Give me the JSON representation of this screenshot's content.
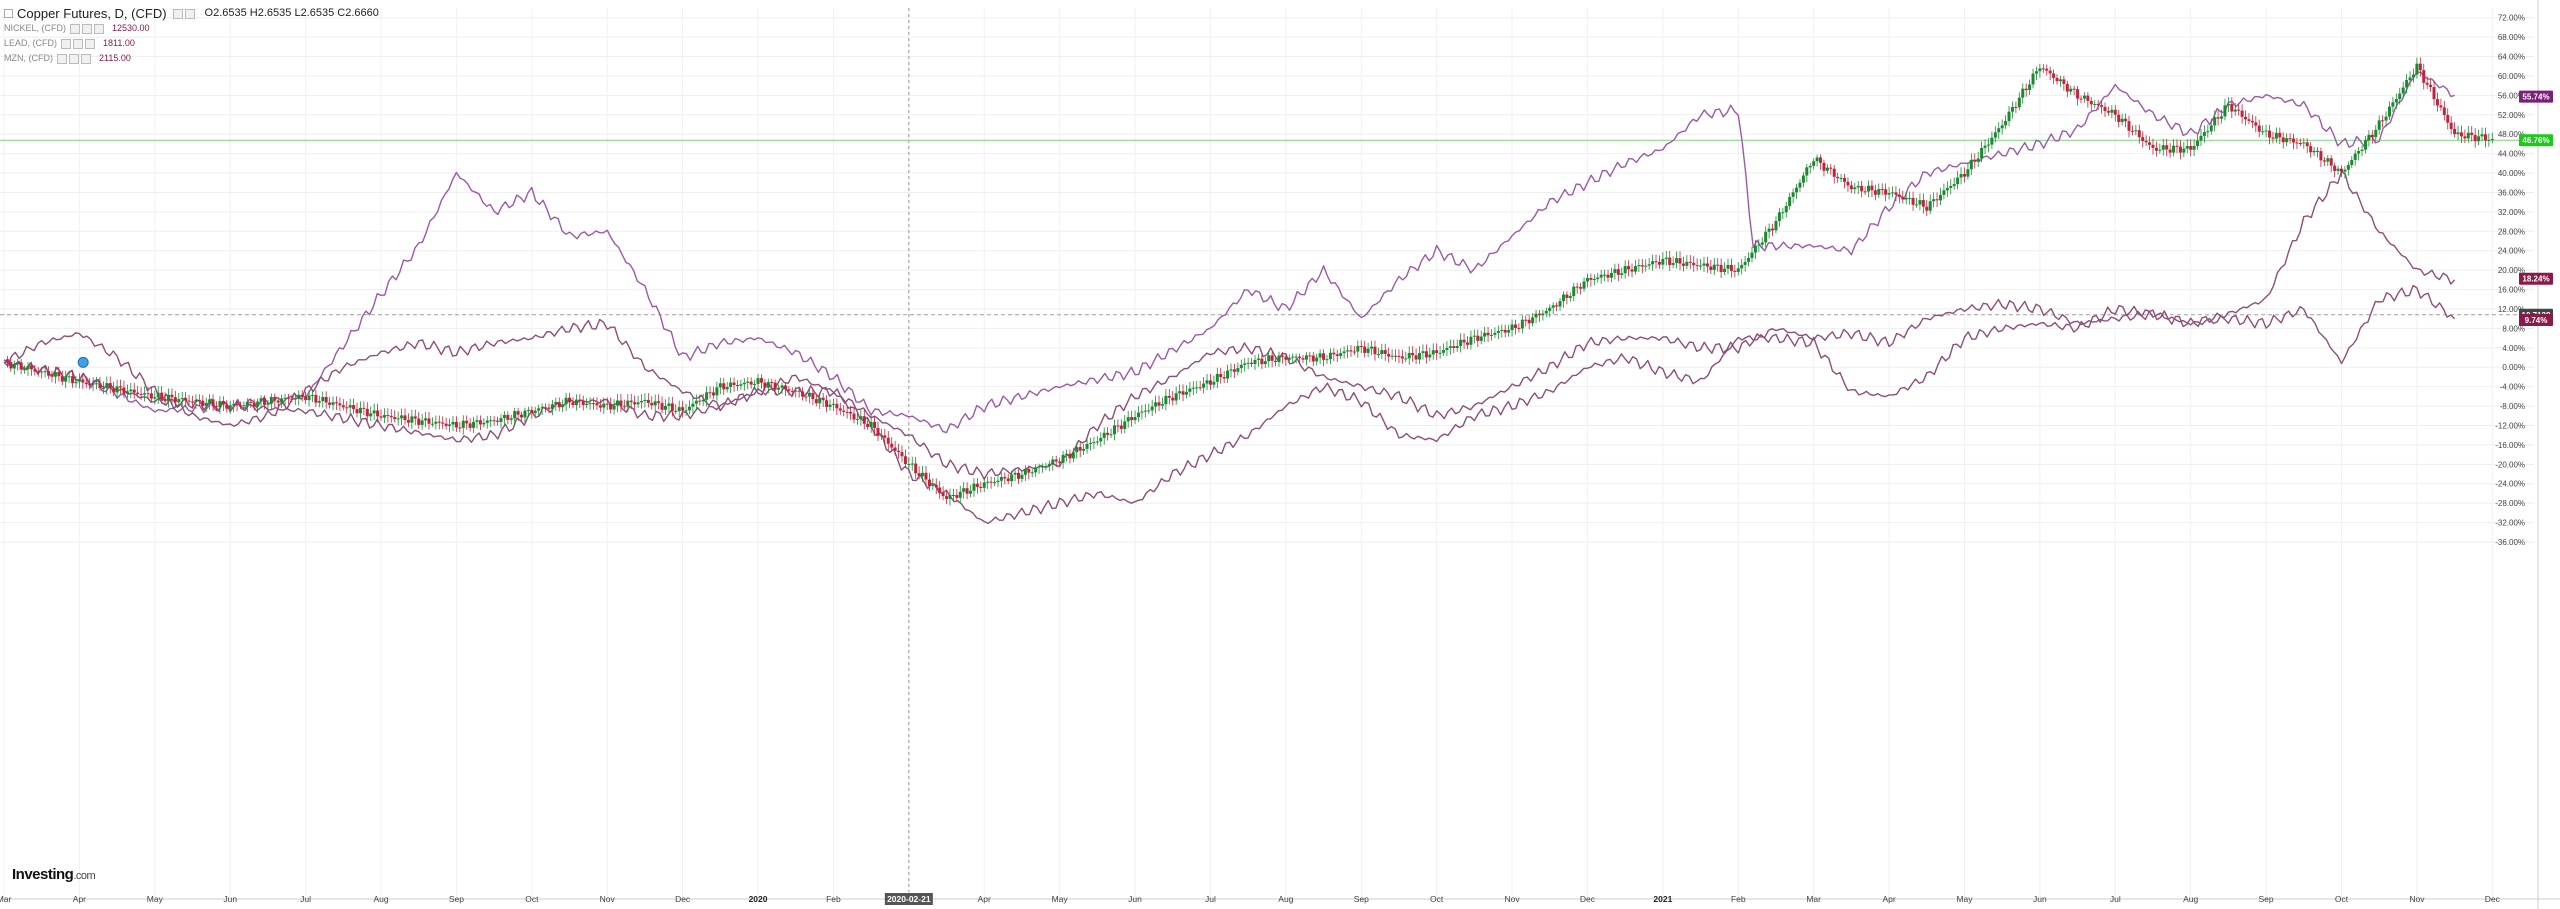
{
  "legend": {
    "title": "Copper Futures, D, (CFD)",
    "ohlc": "O2.6535  H2.6535  L2.6535  C2.6660",
    "comparisons": [
      {
        "name": "NICKEL, (CFD)",
        "value": "12530.00"
      },
      {
        "name": "LEAD, (CFD)",
        "value": "1811.00"
      },
      {
        "name": "MZN, (CFD)",
        "value": "2115.00"
      }
    ]
  },
  "logo": {
    "main": "Investing",
    "suffix": ".com"
  },
  "colors": {
    "purple": "#9b5aa8",
    "mauve": "#8e4e7a",
    "up": "#1a8a2e",
    "down": "#c0243c",
    "green_line": "#78d878",
    "badge_purple": "#7b1f7a",
    "badge_green": "#1ec81e",
    "badge_maroon": "#8b1a4a",
    "badge_dark": "#444444"
  },
  "chart_data": {
    "type": "line",
    "title": "Copper Futures, D, (CFD)",
    "y_unit": "%",
    "ylim": [
      -36,
      74
    ],
    "y_ticks": [
      -36,
      -32,
      -28,
      -24,
      -20,
      -16,
      -12,
      -8,
      -4,
      0,
      4,
      8,
      12,
      16,
      20,
      24,
      28,
      32,
      36,
      40,
      44,
      48,
      52,
      56,
      60,
      64,
      68,
      72
    ],
    "x_labels": [
      "Mar",
      "Apr",
      "May",
      "Jun",
      "Jul",
      "Aug",
      "Sep",
      "Oct",
      "Nov",
      "Dec",
      "2020",
      "Feb",
      "2020-02-21",
      "Apr",
      "May",
      "Jun",
      "Jul",
      "Aug",
      "Sep",
      "Oct",
      "Nov",
      "Dec",
      "2021",
      "Feb",
      "Mar",
      "Apr",
      "May",
      "Jun",
      "Jul",
      "Aug",
      "Sep",
      "Oct",
      "Nov",
      "Dec"
    ],
    "highlight_x_label": "2020-02-21",
    "grid": true,
    "badges": [
      {
        "label": "55.74%",
        "value": 55.74,
        "color": "badge_purple"
      },
      {
        "label": "46.76%",
        "value": 46.76,
        "color": "badge_green"
      },
      {
        "label": "18.24%",
        "value": 18.24,
        "color": "badge_maroon"
      },
      {
        "label": "10.7138",
        "value": 10.8,
        "color": "badge_dark"
      },
      {
        "label": "9.74%",
        "value": 9.74,
        "color": "badge_maroon"
      }
    ],
    "horizontal_lines": [
      {
        "value": 46.76,
        "style": "solid",
        "color": "green_line"
      },
      {
        "value": 10.8,
        "style": "dashed",
        "color": "badge_dark"
      }
    ],
    "series": [
      {
        "name": "NICKEL, (CFD)",
        "color": "purple",
        "style": "line",
        "points": [
          [
            0,
            1
          ],
          [
            1,
            -2
          ],
          [
            2,
            -9
          ],
          [
            3,
            -8
          ],
          [
            4,
            -6
          ],
          [
            5,
            15
          ],
          [
            5.5,
            25
          ],
          [
            6,
            40
          ],
          [
            6.5,
            32
          ],
          [
            7,
            36
          ],
          [
            7.5,
            27
          ],
          [
            8,
            28
          ],
          [
            8.5,
            16
          ],
          [
            9,
            2
          ],
          [
            9.5,
            5
          ],
          [
            10,
            6
          ],
          [
            10.5,
            3
          ],
          [
            11,
            -2
          ],
          [
            11.5,
            -9
          ],
          [
            12,
            -10
          ],
          [
            12.5,
            -13
          ],
          [
            13,
            -8
          ],
          [
            14,
            -4
          ],
          [
            15,
            -1
          ],
          [
            16,
            8
          ],
          [
            16.5,
            16
          ],
          [
            17,
            12
          ],
          [
            17.5,
            20
          ],
          [
            18,
            10
          ],
          [
            18.5,
            18
          ],
          [
            19,
            24
          ],
          [
            19.5,
            20
          ],
          [
            20,
            27
          ],
          [
            20.5,
            34
          ],
          [
            21,
            38
          ],
          [
            21.5,
            42
          ],
          [
            22,
            45
          ],
          [
            22.5,
            52
          ],
          [
            23,
            53
          ],
          [
            23.2,
            25
          ],
          [
            24,
            25
          ],
          [
            24.5,
            24
          ],
          [
            25,
            33
          ],
          [
            25.5,
            40
          ],
          [
            26,
            42
          ],
          [
            26.5,
            44
          ],
          [
            27,
            46
          ],
          [
            27.5,
            49
          ],
          [
            28,
            58
          ],
          [
            28.5,
            52
          ],
          [
            29,
            48
          ],
          [
            29.5,
            54
          ],
          [
            30,
            56
          ],
          [
            30.5,
            54
          ],
          [
            31,
            46
          ],
          [
            31.5,
            47
          ],
          [
            32,
            61
          ],
          [
            32.5,
            56
          ]
        ]
      },
      {
        "name": "LEAD, (CFD)",
        "color": "mauve",
        "style": "line",
        "points": [
          [
            0,
            1
          ],
          [
            0.5,
            5
          ],
          [
            1,
            7
          ],
          [
            1.5,
            2
          ],
          [
            2,
            -5
          ],
          [
            2.5,
            -10
          ],
          [
            3,
            -12
          ],
          [
            3.5,
            -10
          ],
          [
            4,
            -5
          ],
          [
            4.5,
            0
          ],
          [
            5,
            3
          ],
          [
            5.5,
            5
          ],
          [
            6,
            3
          ],
          [
            6.5,
            5
          ],
          [
            7,
            6
          ],
          [
            7.5,
            8
          ],
          [
            8,
            9
          ],
          [
            8.5,
            0
          ],
          [
            9,
            -5
          ],
          [
            9.5,
            -8
          ],
          [
            10,
            -5
          ],
          [
            10.5,
            -2
          ],
          [
            11,
            -5
          ],
          [
            11.5,
            -12
          ],
          [
            12,
            -22
          ],
          [
            12.5,
            -26
          ],
          [
            13,
            -32
          ],
          [
            13.5,
            -30
          ],
          [
            14,
            -28
          ],
          [
            14.5,
            -26
          ],
          [
            15,
            -28
          ],
          [
            15.5,
            -22
          ],
          [
            16,
            -18
          ],
          [
            16.5,
            -14
          ],
          [
            17,
            -8
          ],
          [
            17.5,
            -4
          ],
          [
            18,
            -7
          ],
          [
            18.5,
            -14
          ],
          [
            19,
            -15
          ],
          [
            19.5,
            -10
          ],
          [
            20,
            -8
          ],
          [
            20.5,
            -5
          ],
          [
            21,
            0
          ],
          [
            21.5,
            2
          ],
          [
            22,
            -1
          ],
          [
            22.5,
            -3
          ],
          [
            23,
            6
          ],
          [
            23.5,
            6
          ],
          [
            24,
            5
          ],
          [
            24.5,
            -5
          ],
          [
            25,
            -6
          ],
          [
            25.5,
            -2
          ],
          [
            26,
            6
          ],
          [
            26.5,
            8
          ],
          [
            27,
            9
          ],
          [
            27.5,
            8
          ],
          [
            28,
            12
          ],
          [
            28.5,
            11
          ],
          [
            29,
            9
          ],
          [
            29.5,
            10
          ],
          [
            30,
            9
          ],
          [
            30.5,
            12
          ],
          [
            31,
            1
          ],
          [
            31.5,
            14
          ],
          [
            32,
            16
          ],
          [
            32.5,
            10
          ]
        ]
      },
      {
        "name": "MZN, (CFD)",
        "color": "mauve",
        "style": "line",
        "points": [
          [
            0,
            1
          ],
          [
            1,
            -2
          ],
          [
            2,
            -7
          ],
          [
            3,
            -8
          ],
          [
            4,
            -9
          ],
          [
            5,
            -12
          ],
          [
            6,
            -15
          ],
          [
            6.5,
            -14
          ],
          [
            7,
            -10
          ],
          [
            7.5,
            -7
          ],
          [
            8,
            -7
          ],
          [
            8.5,
            -10
          ],
          [
            9,
            -10
          ],
          [
            9.5,
            -8
          ],
          [
            10,
            -5
          ],
          [
            11,
            -5
          ],
          [
            11.5,
            -10
          ],
          [
            12,
            -14
          ],
          [
            12.5,
            -20
          ],
          [
            13,
            -22
          ],
          [
            14,
            -20
          ],
          [
            14.5,
            -12
          ],
          [
            15,
            -6
          ],
          [
            15.5,
            -2
          ],
          [
            16,
            3
          ],
          [
            16.5,
            4
          ],
          [
            17,
            2
          ],
          [
            17.5,
            -2
          ],
          [
            18,
            -4
          ],
          [
            18.5,
            -6
          ],
          [
            19,
            -10
          ],
          [
            19.5,
            -8
          ],
          [
            20,
            -4
          ],
          [
            20.5,
            0
          ],
          [
            21,
            5
          ],
          [
            21.5,
            6
          ],
          [
            22,
            6
          ],
          [
            22.5,
            4
          ],
          [
            23,
            4
          ],
          [
            23.5,
            8
          ],
          [
            24,
            6
          ],
          [
            24.5,
            7
          ],
          [
            25,
            5
          ],
          [
            25.5,
            10
          ],
          [
            26,
            12
          ],
          [
            26.5,
            13
          ],
          [
            27,
            12
          ],
          [
            27.5,
            9
          ],
          [
            28,
            10
          ],
          [
            28.5,
            11
          ],
          [
            29,
            9
          ],
          [
            29.5,
            11
          ],
          [
            30,
            14
          ],
          [
            30.5,
            30
          ],
          [
            31,
            40
          ],
          [
            31.5,
            28
          ],
          [
            32,
            20
          ],
          [
            32.5,
            18
          ]
        ]
      },
      {
        "name": "Copper Futures",
        "style": "candles",
        "points": [
          [
            0,
            1
          ],
          [
            1,
            -3
          ],
          [
            2,
            -6
          ],
          [
            3,
            -8
          ],
          [
            4,
            -6
          ],
          [
            5,
            -10
          ],
          [
            6,
            -12
          ],
          [
            6.5,
            -11
          ],
          [
            7,
            -9
          ],
          [
            7.5,
            -7
          ],
          [
            8,
            -8
          ],
          [
            8.5,
            -7
          ],
          [
            9,
            -9
          ],
          [
            9.5,
            -4
          ],
          [
            10,
            -3
          ],
          [
            10.5,
            -5
          ],
          [
            11,
            -8
          ],
          [
            11.5,
            -12
          ],
          [
            12,
            -20
          ],
          [
            12.5,
            -27
          ],
          [
            13,
            -24
          ],
          [
            13.5,
            -22
          ],
          [
            14,
            -19
          ],
          [
            14.5,
            -15
          ],
          [
            15,
            -10
          ],
          [
            15.5,
            -6
          ],
          [
            16,
            -3
          ],
          [
            16.5,
            1
          ],
          [
            17,
            2
          ],
          [
            17.5,
            2
          ],
          [
            18,
            4
          ],
          [
            18.5,
            2
          ],
          [
            19,
            3
          ],
          [
            19.5,
            6
          ],
          [
            20,
            8
          ],
          [
            20.5,
            12
          ],
          [
            21,
            18
          ],
          [
            21.5,
            20
          ],
          [
            22,
            22
          ],
          [
            22.5,
            21
          ],
          [
            23,
            20
          ],
          [
            23.5,
            30
          ],
          [
            24,
            43
          ],
          [
            24.5,
            37
          ],
          [
            25,
            36
          ],
          [
            25.5,
            33
          ],
          [
            26,
            40
          ],
          [
            26.5,
            50
          ],
          [
            27,
            62
          ],
          [
            27.5,
            56
          ],
          [
            28,
            52
          ],
          [
            28.5,
            45
          ],
          [
            29,
            45
          ],
          [
            29.5,
            54
          ],
          [
            30,
            48
          ],
          [
            30.5,
            46
          ],
          [
            31,
            40
          ],
          [
            31.5,
            50
          ],
          [
            32,
            62
          ],
          [
            32.5,
            48
          ],
          [
            33,
            47
          ]
        ]
      }
    ]
  }
}
